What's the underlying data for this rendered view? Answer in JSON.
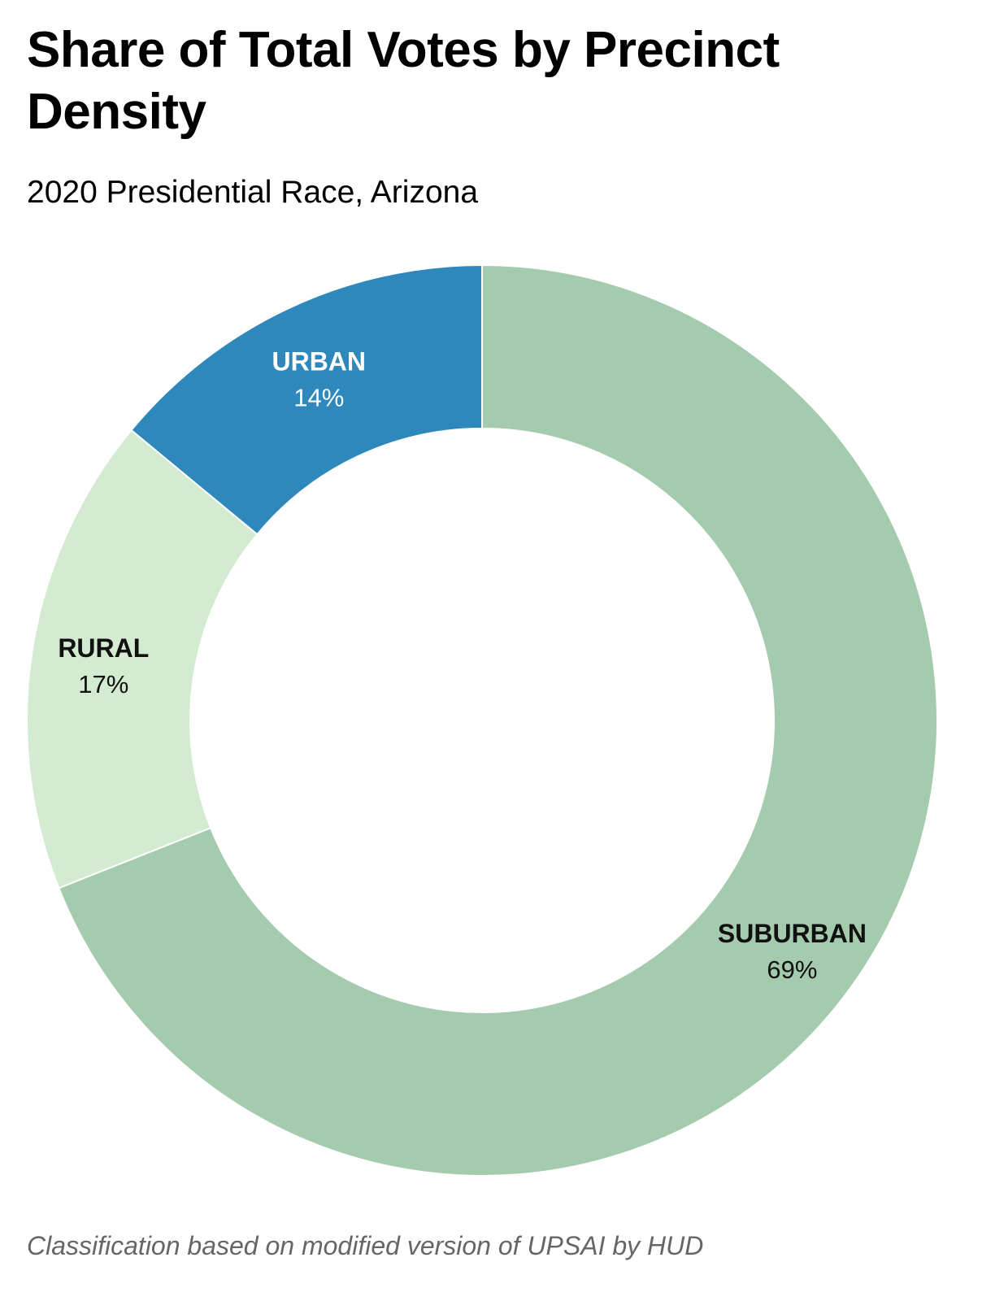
{
  "chart_data": {
    "type": "pie",
    "variant": "donut",
    "title": "Share of Total Votes by Precinct Density",
    "subtitle": "2020 Presidential Race, Arizona",
    "footnote": "Classification based on modified version of UPSAI by HUD",
    "unit": "%",
    "start_angle_deg": 0,
    "direction": "clockwise",
    "slices": [
      {
        "label": "SUBURBAN",
        "value": 69,
        "value_label": "69%",
        "color": "#a5cbae",
        "text_color": "#111111"
      },
      {
        "label": "RURAL",
        "value": 17,
        "value_label": "17%",
        "color": "#d3ebd1",
        "text_color": "#111111"
      },
      {
        "label": "URBAN",
        "value": 14,
        "value_label": "14%",
        "color": "#2e88bb",
        "text_color": "#ffffff"
      }
    ]
  }
}
